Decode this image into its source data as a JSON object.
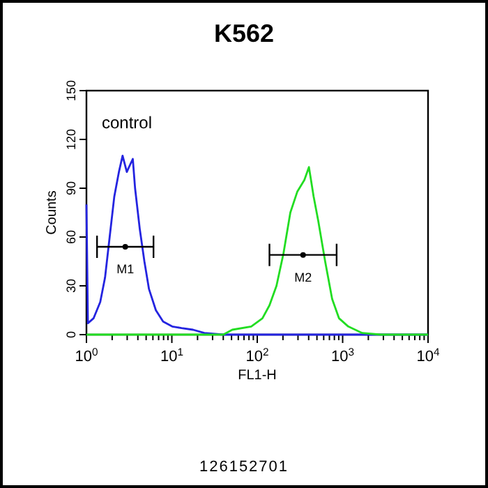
{
  "chart_data": {
    "type": "line",
    "title": "K562",
    "xlabel": "FL1-H",
    "ylabel": "Counts",
    "log": "x",
    "xlim": [
      1,
      10000
    ],
    "ylim": [
      0,
      150
    ],
    "xticks": [
      {
        "value": 1,
        "label": "10$^{0}$"
      },
      {
        "value": 2,
        "label": null
      },
      {
        "value": 3,
        "label": null
      },
      {
        "value": 4,
        "label": null
      },
      {
        "value": 5,
        "label": null
      },
      {
        "value": 6,
        "label": null
      },
      {
        "value": 7,
        "label": null
      },
      {
        "value": 8,
        "label": null
      },
      {
        "value": 9,
        "label": null
      },
      {
        "value": 10,
        "label": "10$^{1}$"
      },
      {
        "value": 20,
        "label": null
      },
      {
        "value": 30,
        "label": null
      },
      {
        "value": 40,
        "label": null
      },
      {
        "value": 50,
        "label": null
      },
      {
        "value": 60,
        "label": null
      },
      {
        "value": 70,
        "label": null
      },
      {
        "value": 80,
        "label": null
      },
      {
        "value": 90,
        "label": null
      },
      {
        "value": 100,
        "label": "10$^{2}$"
      },
      {
        "value": 200,
        "label": null
      },
      {
        "value": 300,
        "label": null
      },
      {
        "value": 400,
        "label": null
      },
      {
        "value": 500,
        "label": null
      },
      {
        "value": 600,
        "label": null
      },
      {
        "value": 700,
        "label": null
      },
      {
        "value": 800,
        "label": null
      },
      {
        "value": 900,
        "label": null
      },
      {
        "value": 1000,
        "label": "10$^{3}$"
      },
      {
        "value": 2000,
        "label": null
      },
      {
        "value": 3000,
        "label": null
      },
      {
        "value": 4000,
        "label": null
      },
      {
        "value": 5000,
        "label": null
      },
      {
        "value": 6000,
        "label": null
      },
      {
        "value": 7000,
        "label": null
      },
      {
        "value": 8000,
        "label": null
      },
      {
        "value": 9000,
        "label": null
      },
      {
        "value": 10000,
        "label": "10$^{4}$"
      }
    ],
    "yticks": [
      0,
      30,
      60,
      90,
      120,
      150
    ],
    "grid": false,
    "legend": false,
    "line_style": "solid",
    "series": [
      {
        "color": "#2424e0",
        "x": [
          1,
          1.04,
          1.21,
          1.45,
          1.65,
          1.87,
          2.12,
          2.4,
          2.65,
          2.97,
          3.28,
          3.49,
          3.71,
          4.21,
          4.77,
          5.4,
          6.5,
          7.9,
          10.1,
          13,
          17.7,
          24,
          40,
          108,
          1320,
          10000
        ],
        "values": [
          80,
          7,
          10,
          20,
          35,
          60,
          85,
          100,
          110,
          100,
          105,
          108,
          90,
          65,
          45,
          28,
          15,
          8,
          5,
          4,
          3,
          1,
          0,
          0,
          0,
          0
        ]
      },
      {
        "color": "#22dd22",
        "x": [
          1,
          40,
          51,
          85,
          115,
          139,
          168,
          203,
          244,
          295,
          356,
          403,
          457,
          518,
          624,
          753,
          908,
          1164,
          1695,
          2793,
          10000
        ],
        "values": [
          0,
          0,
          3,
          5,
          10,
          18,
          30,
          50,
          75,
          88,
          95,
          103,
          85,
          70,
          45,
          22,
          10,
          5,
          1,
          0,
          0
        ]
      },
      {
        "type": "scatter",
        "color": "#000000",
        "x": [
          2.85,
          344
        ],
        "values": [
          54,
          49
        ],
        "xerrors": [
          [
            1.33,
            6.1
          ],
          [
            139,
            850
          ]
        ],
        "value_labels": [
          "M1",
          "M2"
        ]
      }
    ],
    "annotations": [
      "control",
      "126152701"
    ]
  }
}
